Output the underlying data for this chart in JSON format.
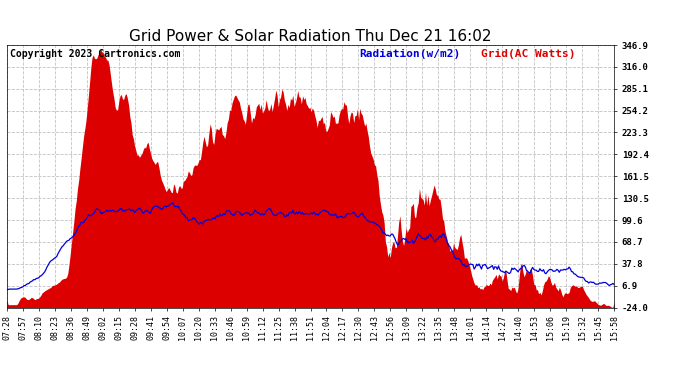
{
  "title": "Grid Power & Solar Radiation Thu Dec 21 16:02",
  "copyright": "Copyright 2023 Cartronics.com",
  "legend_radiation": "Radiation(w/m2)",
  "legend_grid": "Grid(AC Watts)",
  "ylabel_right_ticks": [
    346.9,
    316.0,
    285.1,
    254.2,
    223.3,
    192.4,
    161.5,
    130.5,
    99.6,
    68.7,
    37.8,
    6.9,
    -24.0
  ],
  "x_tick_labels": [
    "07:28",
    "07:57",
    "08:10",
    "08:23",
    "08:36",
    "08:49",
    "09:02",
    "09:15",
    "09:28",
    "09:41",
    "09:54",
    "10:07",
    "10:20",
    "10:33",
    "10:46",
    "10:59",
    "11:12",
    "11:25",
    "11:38",
    "11:51",
    "12:04",
    "12:17",
    "12:30",
    "12:43",
    "12:56",
    "13:09",
    "13:22",
    "13:35",
    "13:48",
    "14:01",
    "14:14",
    "14:27",
    "14:40",
    "14:53",
    "15:06",
    "15:19",
    "15:32",
    "15:45",
    "15:58"
  ],
  "grid_color": "#dd0000",
  "radiation_color": "#0000dd",
  "background_color": "#ffffff",
  "grid_line_color": "#bbbbbb",
  "title_fontsize": 11,
  "copyright_fontsize": 7,
  "legend_fontsize": 8,
  "tick_fontsize": 6.5,
  "ymin": -24.0,
  "ymax": 346.9
}
